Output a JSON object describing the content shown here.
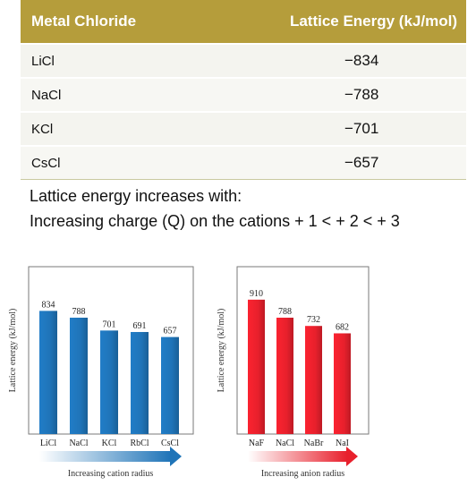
{
  "table": {
    "headers": [
      "Metal Chloride",
      "Lattice Energy (kJ/mol)"
    ],
    "rows": [
      [
        "LiCl",
        "−834"
      ],
      [
        "NaCl",
        "−788"
      ],
      [
        "KCl",
        "−701"
      ],
      [
        "CsCl",
        "−657"
      ]
    ]
  },
  "text": {
    "line1": "Lattice energy increases with:",
    "line2": "Increasing charge (Q) on the cations + 1 < + 2 <  + 3"
  },
  "colors": {
    "header_bg": "#b59d3b",
    "blue_bar": "#1f74b8",
    "red_bar": "#e8202c"
  },
  "chart_data": [
    {
      "type": "bar",
      "categories": [
        "LiCl",
        "NaCl",
        "KCl",
        "RbCl",
        "CsCl"
      ],
      "values": [
        834,
        788,
        701,
        691,
        657
      ],
      "ylabel": "Lattice energy (kJ/mol)",
      "xlabel": "Increasing cation radius",
      "color": "#1f74b8"
    },
    {
      "type": "bar",
      "categories": [
        "NaF",
        "NaCl",
        "NaBr",
        "NaI"
      ],
      "values": [
        910,
        788,
        732,
        682
      ],
      "ylabel": "Lattice energy (kJ/mol)",
      "xlabel": "Increasing anion radius",
      "color": "#e8202c"
    }
  ]
}
